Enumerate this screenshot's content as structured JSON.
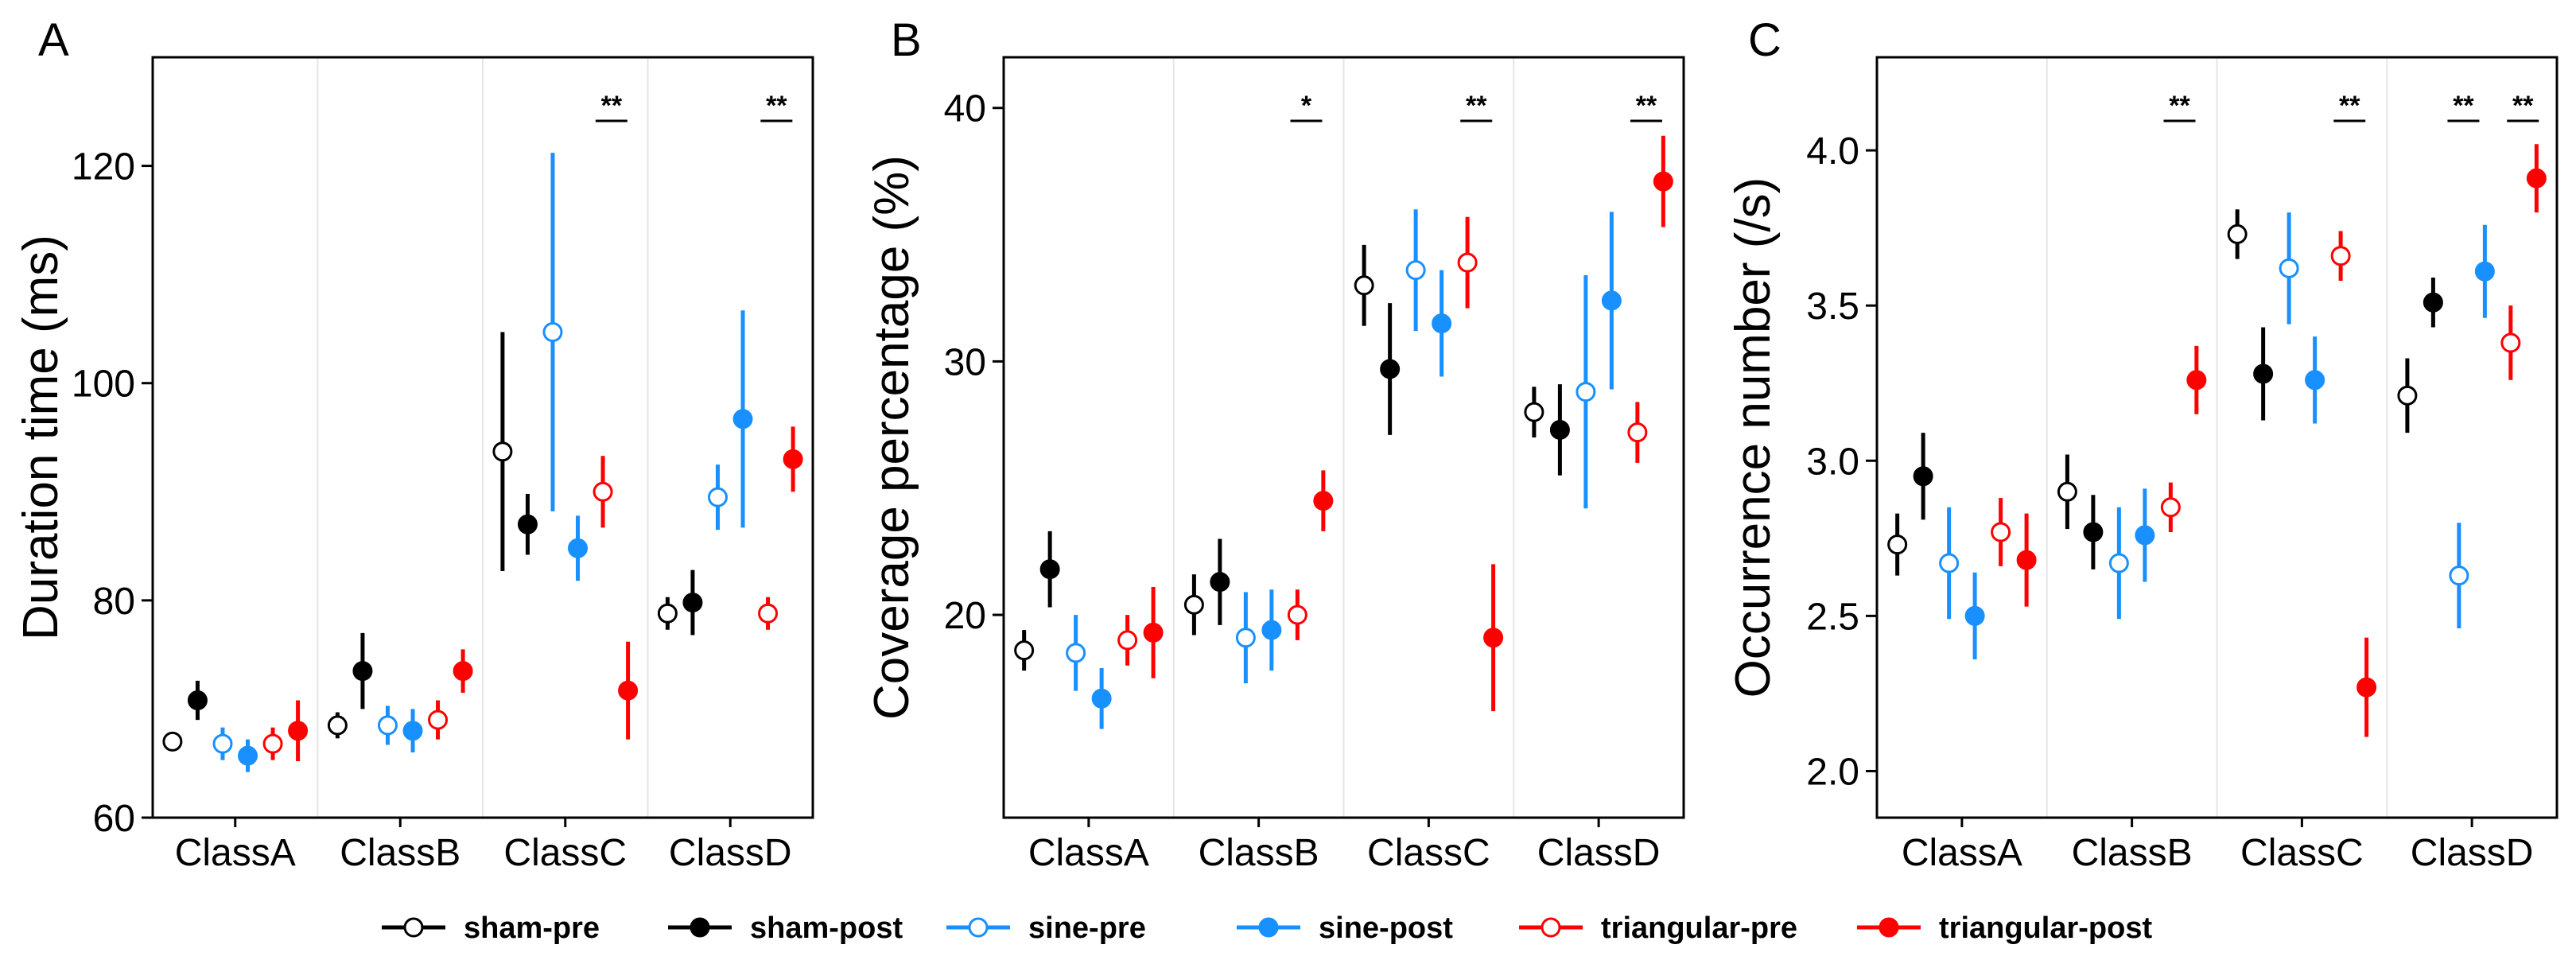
{
  "legend": [
    {
      "name": "sham-pre",
      "color": "#000000",
      "filled": false
    },
    {
      "name": "sham-post",
      "color": "#000000",
      "filled": true
    },
    {
      "name": "sine-pre",
      "color": "#1890ff",
      "filled": false
    },
    {
      "name": "sine-post",
      "color": "#1890ff",
      "filled": true
    },
    {
      "name": "triangular-pre",
      "color": "#ff0000",
      "filled": false
    },
    {
      "name": "triangular-post",
      "color": "#ff0000",
      "filled": true
    }
  ],
  "chart_data": [
    {
      "type": "scatter",
      "panel": "A",
      "ylabel": "Duration time (ms)",
      "ylim": [
        60,
        130
      ],
      "yticks": [
        60,
        80,
        100,
        120
      ],
      "categories": [
        "ClassA",
        "ClassB",
        "ClassC",
        "ClassD"
      ],
      "series": [
        {
          "name": "sham-pre",
          "values": [
            67.0,
            68.5,
            93.7,
            78.8
          ],
          "errors": [
            0.8,
            1.2,
            11.0,
            1.5
          ]
        },
        {
          "name": "sham-post",
          "values": [
            70.8,
            73.5,
            87.0,
            79.8
          ],
          "errors": [
            1.8,
            3.5,
            2.8,
            3.0
          ]
        },
        {
          "name": "sine-pre",
          "values": [
            66.8,
            68.5,
            104.7,
            89.5
          ],
          "errors": [
            1.5,
            1.8,
            16.5,
            3.0
          ]
        },
        {
          "name": "sine-post",
          "values": [
            65.7,
            68.0,
            84.8,
            96.7
          ],
          "errors": [
            1.5,
            2.0,
            3.0,
            10.0
          ]
        },
        {
          "name": "triangular-pre",
          "values": [
            66.8,
            69.0,
            90.0,
            78.8
          ],
          "errors": [
            1.5,
            1.8,
            3.3,
            1.5
          ]
        },
        {
          "name": "triangular-post",
          "values": [
            68.0,
            73.5,
            71.7,
            93.0
          ],
          "errors": [
            2.8,
            2.0,
            4.5,
            3.0
          ]
        }
      ],
      "annotations": [
        {
          "category": "ClassC",
          "offset": 0.78,
          "text": "**"
        },
        {
          "category": "ClassD",
          "offset": 0.78,
          "text": "**"
        }
      ]
    },
    {
      "type": "scatter",
      "panel": "B",
      "ylabel": "Coverage percentage (%)",
      "ylim": [
        12,
        42
      ],
      "yticks": [
        20,
        30,
        40
      ],
      "categories": [
        "ClassA",
        "ClassB",
        "ClassC",
        "ClassD"
      ],
      "series": [
        {
          "name": "sham-pre",
          "values": [
            18.6,
            20.4,
            33.0,
            28.0
          ],
          "errors": [
            0.8,
            1.2,
            1.6,
            1.0
          ]
        },
        {
          "name": "sham-post",
          "values": [
            21.8,
            21.3,
            29.7,
            27.3
          ],
          "errors": [
            1.5,
            1.7,
            2.6,
            1.8
          ]
        },
        {
          "name": "sine-pre",
          "values": [
            18.5,
            19.1,
            33.6,
            28.8
          ],
          "errors": [
            1.5,
            1.8,
            2.4,
            4.6
          ]
        },
        {
          "name": "sine-post",
          "values": [
            16.7,
            19.4,
            31.5,
            32.4
          ],
          "errors": [
            1.2,
            1.6,
            2.1,
            3.5
          ]
        },
        {
          "name": "triangular-pre",
          "values": [
            19.0,
            20.0,
            33.9,
            27.2
          ],
          "errors": [
            1.0,
            1.0,
            1.8,
            1.2
          ]
        },
        {
          "name": "triangular-post",
          "values": [
            19.3,
            24.5,
            19.1,
            37.1
          ],
          "errors": [
            1.8,
            1.2,
            2.9,
            1.8
          ]
        }
      ],
      "annotations": [
        {
          "category": "ClassB",
          "offset": 0.78,
          "text": "*"
        },
        {
          "category": "ClassC",
          "offset": 0.78,
          "text": "**"
        },
        {
          "category": "ClassD",
          "offset": 0.78,
          "text": "**"
        }
      ]
    },
    {
      "type": "scatter",
      "panel": "C",
      "ylabel": "Occurrence number (/s)",
      "ylim": [
        1.85,
        4.3
      ],
      "yticks": [
        2.0,
        2.5,
        3.0,
        3.5,
        4.0
      ],
      "yticklabels": [
        "2.0",
        "2.5",
        "3.0",
        "3.5",
        "4.0"
      ],
      "categories": [
        "ClassA",
        "ClassB",
        "ClassC",
        "ClassD"
      ],
      "series": [
        {
          "name": "sham-pre",
          "values": [
            2.73,
            2.9,
            3.73,
            3.21
          ],
          "errors": [
            0.1,
            0.12,
            0.08,
            0.12
          ]
        },
        {
          "name": "sham-post",
          "values": [
            2.95,
            2.77,
            3.28,
            3.51
          ],
          "errors": [
            0.14,
            0.12,
            0.15,
            0.08
          ]
        },
        {
          "name": "sine-pre",
          "values": [
            2.67,
            2.67,
            3.62,
            2.63
          ],
          "errors": [
            0.18,
            0.18,
            0.18,
            0.17
          ]
        },
        {
          "name": "sine-post",
          "values": [
            2.5,
            2.76,
            3.26,
            3.61
          ],
          "errors": [
            0.14,
            0.15,
            0.14,
            0.15
          ]
        },
        {
          "name": "triangular-pre",
          "values": [
            2.77,
            2.85,
            3.66,
            3.38
          ],
          "errors": [
            0.11,
            0.08,
            0.08,
            0.12
          ]
        },
        {
          "name": "triangular-post",
          "values": [
            2.68,
            3.26,
            2.27,
            3.91
          ],
          "errors": [
            0.15,
            0.11,
            0.16,
            0.11
          ]
        }
      ],
      "annotations": [
        {
          "category": "ClassB",
          "offset": 0.78,
          "text": "**"
        },
        {
          "category": "ClassC",
          "offset": 0.78,
          "text": "**"
        },
        {
          "category": "ClassD",
          "offset": 0.45,
          "text": "**"
        },
        {
          "category": "ClassD",
          "offset": 0.8,
          "text": "**"
        }
      ]
    }
  ]
}
